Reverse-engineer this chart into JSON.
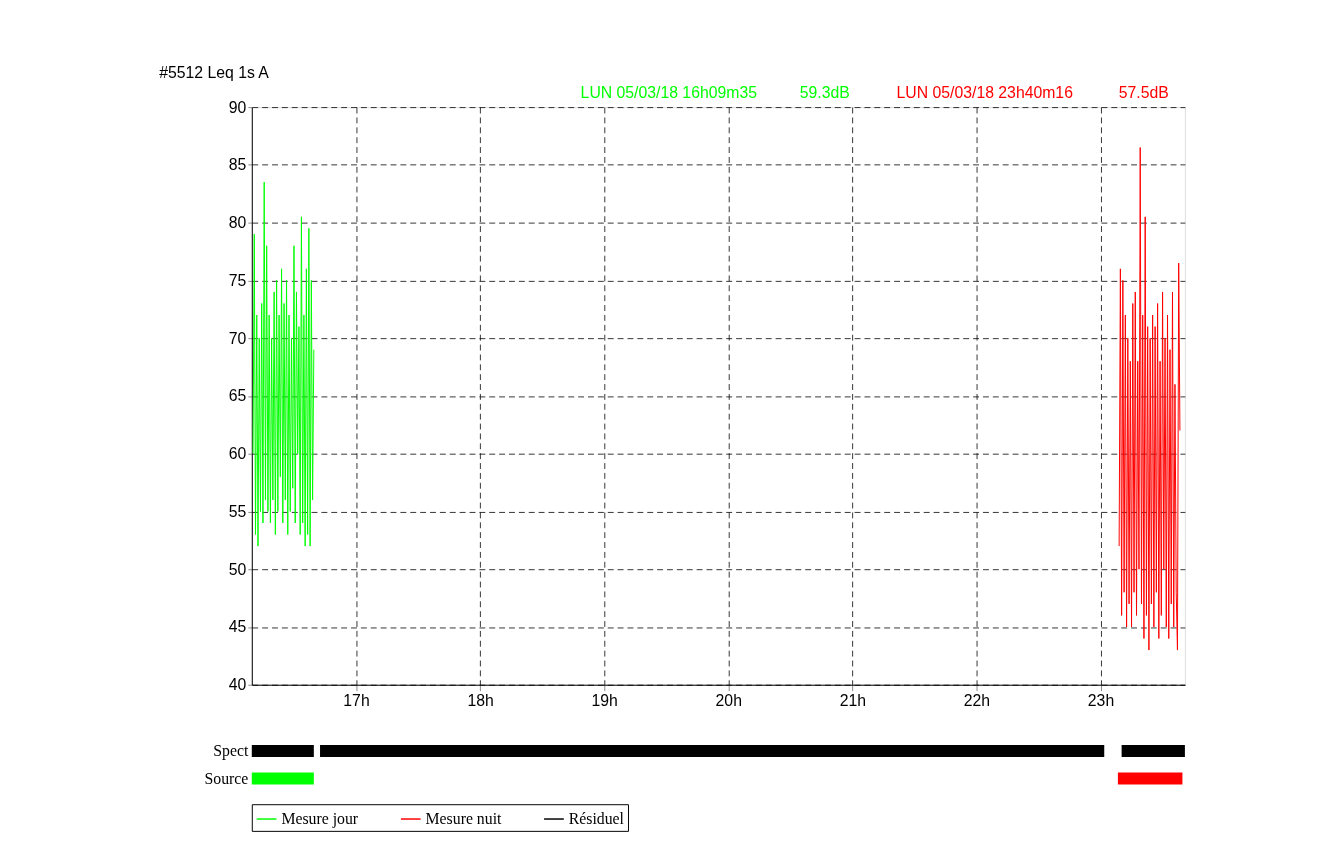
{
  "chart_data": [
    {
      "type": "line",
      "title": "#5512    Leq 1s  A",
      "xlim": [
        16.16,
        23.68
      ],
      "ylim": [
        40,
        90
      ],
      "xticks": [
        {
          "value": 17,
          "label": "17h"
        },
        {
          "value": 18,
          "label": "18h"
        },
        {
          "value": 19,
          "label": "19h"
        },
        {
          "value": 20,
          "label": "20h"
        },
        {
          "value": 21,
          "label": "21h"
        },
        {
          "value": 22,
          "label": "22h"
        },
        {
          "value": 23,
          "label": "23h"
        }
      ],
      "yticks": [
        40,
        45,
        50,
        55,
        60,
        65,
        70,
        75,
        80,
        85,
        90
      ],
      "grid": true,
      "legend": "bottom",
      "line_style": "solid",
      "marker": "none",
      "series": [
        {
          "name": "Mesure jour",
          "color": "#00ff00",
          "x": [
            16.17,
            16.18,
            16.19,
            16.2,
            16.21,
            16.22,
            16.23,
            16.24,
            16.25,
            16.26,
            16.27,
            16.28,
            16.29,
            16.3,
            16.31,
            16.32,
            16.33,
            16.34,
            16.35,
            16.36,
            16.37,
            16.38,
            16.39,
            16.4,
            16.41,
            16.42,
            16.43,
            16.44,
            16.45,
            16.46,
            16.47,
            16.48,
            16.49,
            16.5,
            16.51,
            16.52,
            16.53,
            16.54,
            16.55,
            16.56,
            16.57,
            16.58,
            16.59,
            16.6,
            16.61,
            16.62,
            16.63,
            16.64,
            16.65,
            16.66
          ],
          "values": [
            60,
            79,
            53,
            72,
            52,
            70,
            55,
            73,
            54,
            83.5,
            56,
            78,
            55,
            72,
            54,
            70,
            56,
            74,
            53,
            75,
            55,
            72,
            58,
            76,
            54,
            73,
            56,
            75,
            53,
            72,
            55,
            70,
            57,
            78,
            54,
            74,
            60,
            71,
            53,
            80.5,
            54,
            72,
            52,
            76,
            53,
            79.5,
            52,
            75,
            56,
            69
          ]
        },
        {
          "name": "Mesure nuit",
          "color": "#ff0000",
          "x": [
            23.15,
            23.16,
            23.17,
            23.18,
            23.19,
            23.2,
            23.21,
            23.22,
            23.23,
            23.24,
            23.25,
            23.26,
            23.27,
            23.28,
            23.29,
            23.3,
            23.31,
            23.32,
            23.33,
            23.34,
            23.35,
            23.36,
            23.37,
            23.38,
            23.39,
            23.4,
            23.41,
            23.42,
            23.43,
            23.44,
            23.45,
            23.46,
            23.47,
            23.48,
            23.49,
            23.5,
            23.51,
            23.52,
            23.53,
            23.54,
            23.55,
            23.56,
            23.57,
            23.58,
            23.59,
            23.6,
            23.61,
            23.62,
            23.63,
            23.64
          ],
          "values": [
            52,
            76,
            46,
            75,
            48,
            72,
            45,
            70,
            47,
            68,
            45,
            73,
            48,
            74,
            46,
            68,
            50,
            86.5,
            47,
            72,
            44,
            80.5,
            46,
            71,
            43,
            70,
            47,
            72,
            45,
            71,
            48,
            73,
            44,
            68,
            46,
            74,
            50,
            70,
            45,
            72,
            44,
            69,
            47,
            74,
            45,
            66,
            48,
            43,
            76.5,
            62
          ]
        },
        {
          "name": "Résiduel",
          "color": "#000000"
        }
      ],
      "annotations": [
        "LUN 05/03/18 16h09m35",
        "59.3dB",
        "LUN 05/03/18 23h40m16",
        "57.5dB"
      ]
    },
    {
      "type": "bar",
      "orientation": "horizontal",
      "categories": [
        "Spect"
      ],
      "xlim": [
        16.16,
        23.68
      ],
      "tick_labels": "y",
      "series": [
        {
          "color": "#000000",
          "base": [
            16.16
          ],
          "values": [
            0.5
          ]
        },
        {
          "color": "#000000",
          "base": [
            16.71
          ],
          "values": [
            6.32
          ]
        },
        {
          "color": "#000000",
          "base": [
            23.17
          ],
          "values": [
            0.51
          ]
        }
      ]
    },
    {
      "type": "bar",
      "orientation": "horizontal",
      "categories": [
        "Source"
      ],
      "xlim": [
        16.16,
        23.68
      ],
      "tick_labels": "y",
      "series": [
        {
          "color": "#00ff00",
          "base": [
            16.16
          ],
          "values": [
            0.5
          ]
        },
        {
          "color": "#ff0000",
          "base": [
            23.14
          ],
          "values": [
            0.52
          ]
        }
      ]
    }
  ]
}
